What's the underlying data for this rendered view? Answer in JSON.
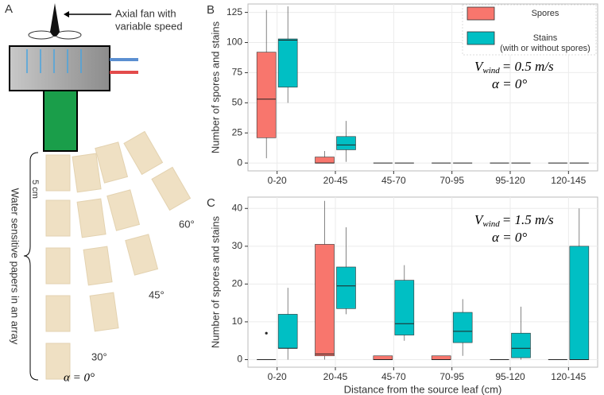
{
  "diagram": {
    "panel_label": "A",
    "fan_label": [
      "Axial fan with",
      "variable speed"
    ],
    "scale_label": "5 cm",
    "array_label": "Water sensitive papers in an array",
    "angle_labels": [
      "60°",
      "45°",
      "30°",
      "α = 0°"
    ]
  },
  "chart_data": [
    {
      "type": "boxplot",
      "panel_label": "B",
      "y_label": "Number of spores and stains",
      "categories": [
        "0-20",
        "20-45",
        "45-70",
        "70-95",
        "95-120",
        "120-145"
      ],
      "series": [
        {
          "name": "Spores",
          "color": "#F8766D",
          "min": [
            4,
            0,
            0,
            0,
            0,
            0
          ],
          "q1": [
            21,
            0,
            0,
            0,
            0,
            0
          ],
          "median": [
            53,
            0,
            0,
            0,
            0,
            0
          ],
          "q3": [
            92,
            5,
            0,
            0,
            0,
            0
          ],
          "max": [
            127,
            10,
            0,
            0,
            0,
            0
          ]
        },
        {
          "name": "Stains",
          "name_note": "(with or without spores)",
          "color": "#00BFC4",
          "min": [
            50,
            1,
            0,
            0,
            0,
            0
          ],
          "q1": [
            63,
            11,
            0,
            0,
            0,
            0
          ],
          "median": [
            102,
            15,
            0,
            0,
            0,
            0
          ],
          "q3": [
            103,
            22,
            0,
            0,
            0,
            0
          ],
          "max": [
            130,
            35,
            0,
            0,
            0,
            0
          ]
        }
      ],
      "annotation": {
        "symbol": "V",
        "subscript": "wind",
        "rest": "= 0.5 m/s",
        "angle": "α = 0°"
      },
      "ylim": [
        -6.5,
        132
      ],
      "yticks": [
        0,
        25,
        50,
        75,
        100,
        125
      ],
      "grid": true,
      "legend": "top-right"
    },
    {
      "type": "boxplot",
      "panel_label": "C",
      "y_label": "Number of spores and stains",
      "x_label": "Distance from the source leaf (cm)",
      "categories": [
        "0-20",
        "20-45",
        "45-70",
        "70-95",
        "95-120",
        "120-145"
      ],
      "series": [
        {
          "name": "Spores",
          "color": "#F8766D",
          "min": [
            0,
            0,
            0,
            0,
            0,
            0
          ],
          "q1": [
            0,
            1,
            0,
            0,
            0,
            0
          ],
          "median": [
            0,
            1.5,
            0,
            0,
            0,
            0
          ],
          "q3": [
            0,
            30.5,
            1,
            1,
            0,
            0
          ],
          "max": [
            0,
            42,
            1,
            1,
            0,
            0
          ],
          "outliers": [
            7,
            null,
            null,
            null,
            null,
            null
          ]
        },
        {
          "name": "Stains",
          "color": "#00BFC4",
          "min": [
            0,
            12,
            5,
            1,
            0,
            0
          ],
          "q1": [
            3,
            13.5,
            6.5,
            4.5,
            0.5,
            0
          ],
          "median": [
            3,
            19.5,
            9.5,
            7.5,
            3,
            0
          ],
          "q3": [
            12,
            24.5,
            21,
            12.5,
            7,
            30
          ],
          "max": [
            19,
            35,
            25,
            16,
            14,
            40
          ]
        }
      ],
      "annotation": {
        "symbol": "V",
        "subscript": "wind",
        "rest": "= 1.5 m/s",
        "angle": "α = 0°"
      },
      "ylim": [
        -2,
        43
      ],
      "yticks": [
        0,
        10,
        20,
        30,
        40
      ],
      "grid": true
    }
  ]
}
